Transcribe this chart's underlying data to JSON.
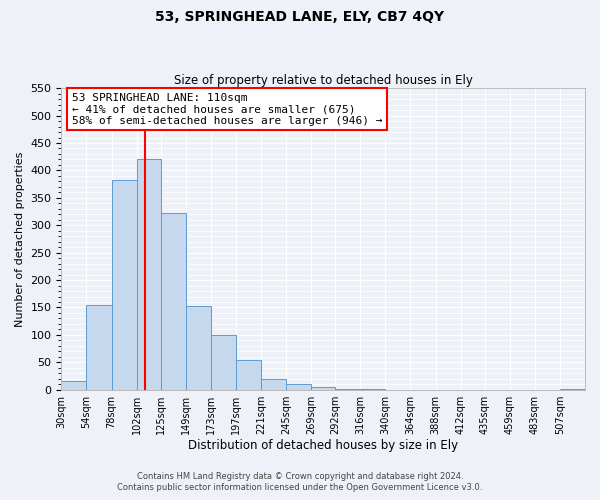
{
  "title": "53, SPRINGHEAD LANE, ELY, CB7 4QY",
  "subtitle": "Size of property relative to detached houses in Ely",
  "xlabel": "Distribution of detached houses by size in Ely",
  "ylabel": "Number of detached properties",
  "bin_labels": [
    "30sqm",
    "54sqm",
    "78sqm",
    "102sqm",
    "125sqm",
    "149sqm",
    "173sqm",
    "197sqm",
    "221sqm",
    "245sqm",
    "269sqm",
    "292sqm",
    "316sqm",
    "340sqm",
    "364sqm",
    "388sqm",
    "412sqm",
    "435sqm",
    "459sqm",
    "483sqm",
    "507sqm"
  ],
  "bar_values": [
    15,
    155,
    383,
    420,
    322,
    153,
    100,
    55,
    20,
    10,
    5,
    2,
    1,
    0,
    0,
    0,
    0,
    0,
    0,
    0,
    2
  ],
  "bar_color": "#c5d8ed",
  "bar_edge_color": "#5b9bd5",
  "vline_x": 110,
  "vline_color": "red",
  "ylim": [
    0,
    550
  ],
  "yticks": [
    0,
    50,
    100,
    150,
    200,
    250,
    300,
    350,
    400,
    450,
    500,
    550
  ],
  "annotation_title": "53 SPRINGHEAD LANE: 110sqm",
  "annotation_line1": "← 41% of detached houses are smaller (675)",
  "annotation_line2": "58% of semi-detached houses are larger (946) →",
  "footer_line1": "Contains HM Land Registry data © Crown copyright and database right 2024.",
  "footer_line2": "Contains public sector information licensed under the Open Government Licence v3.0.",
  "background_color": "#eef2f8",
  "grid_color": "#ffffff"
}
